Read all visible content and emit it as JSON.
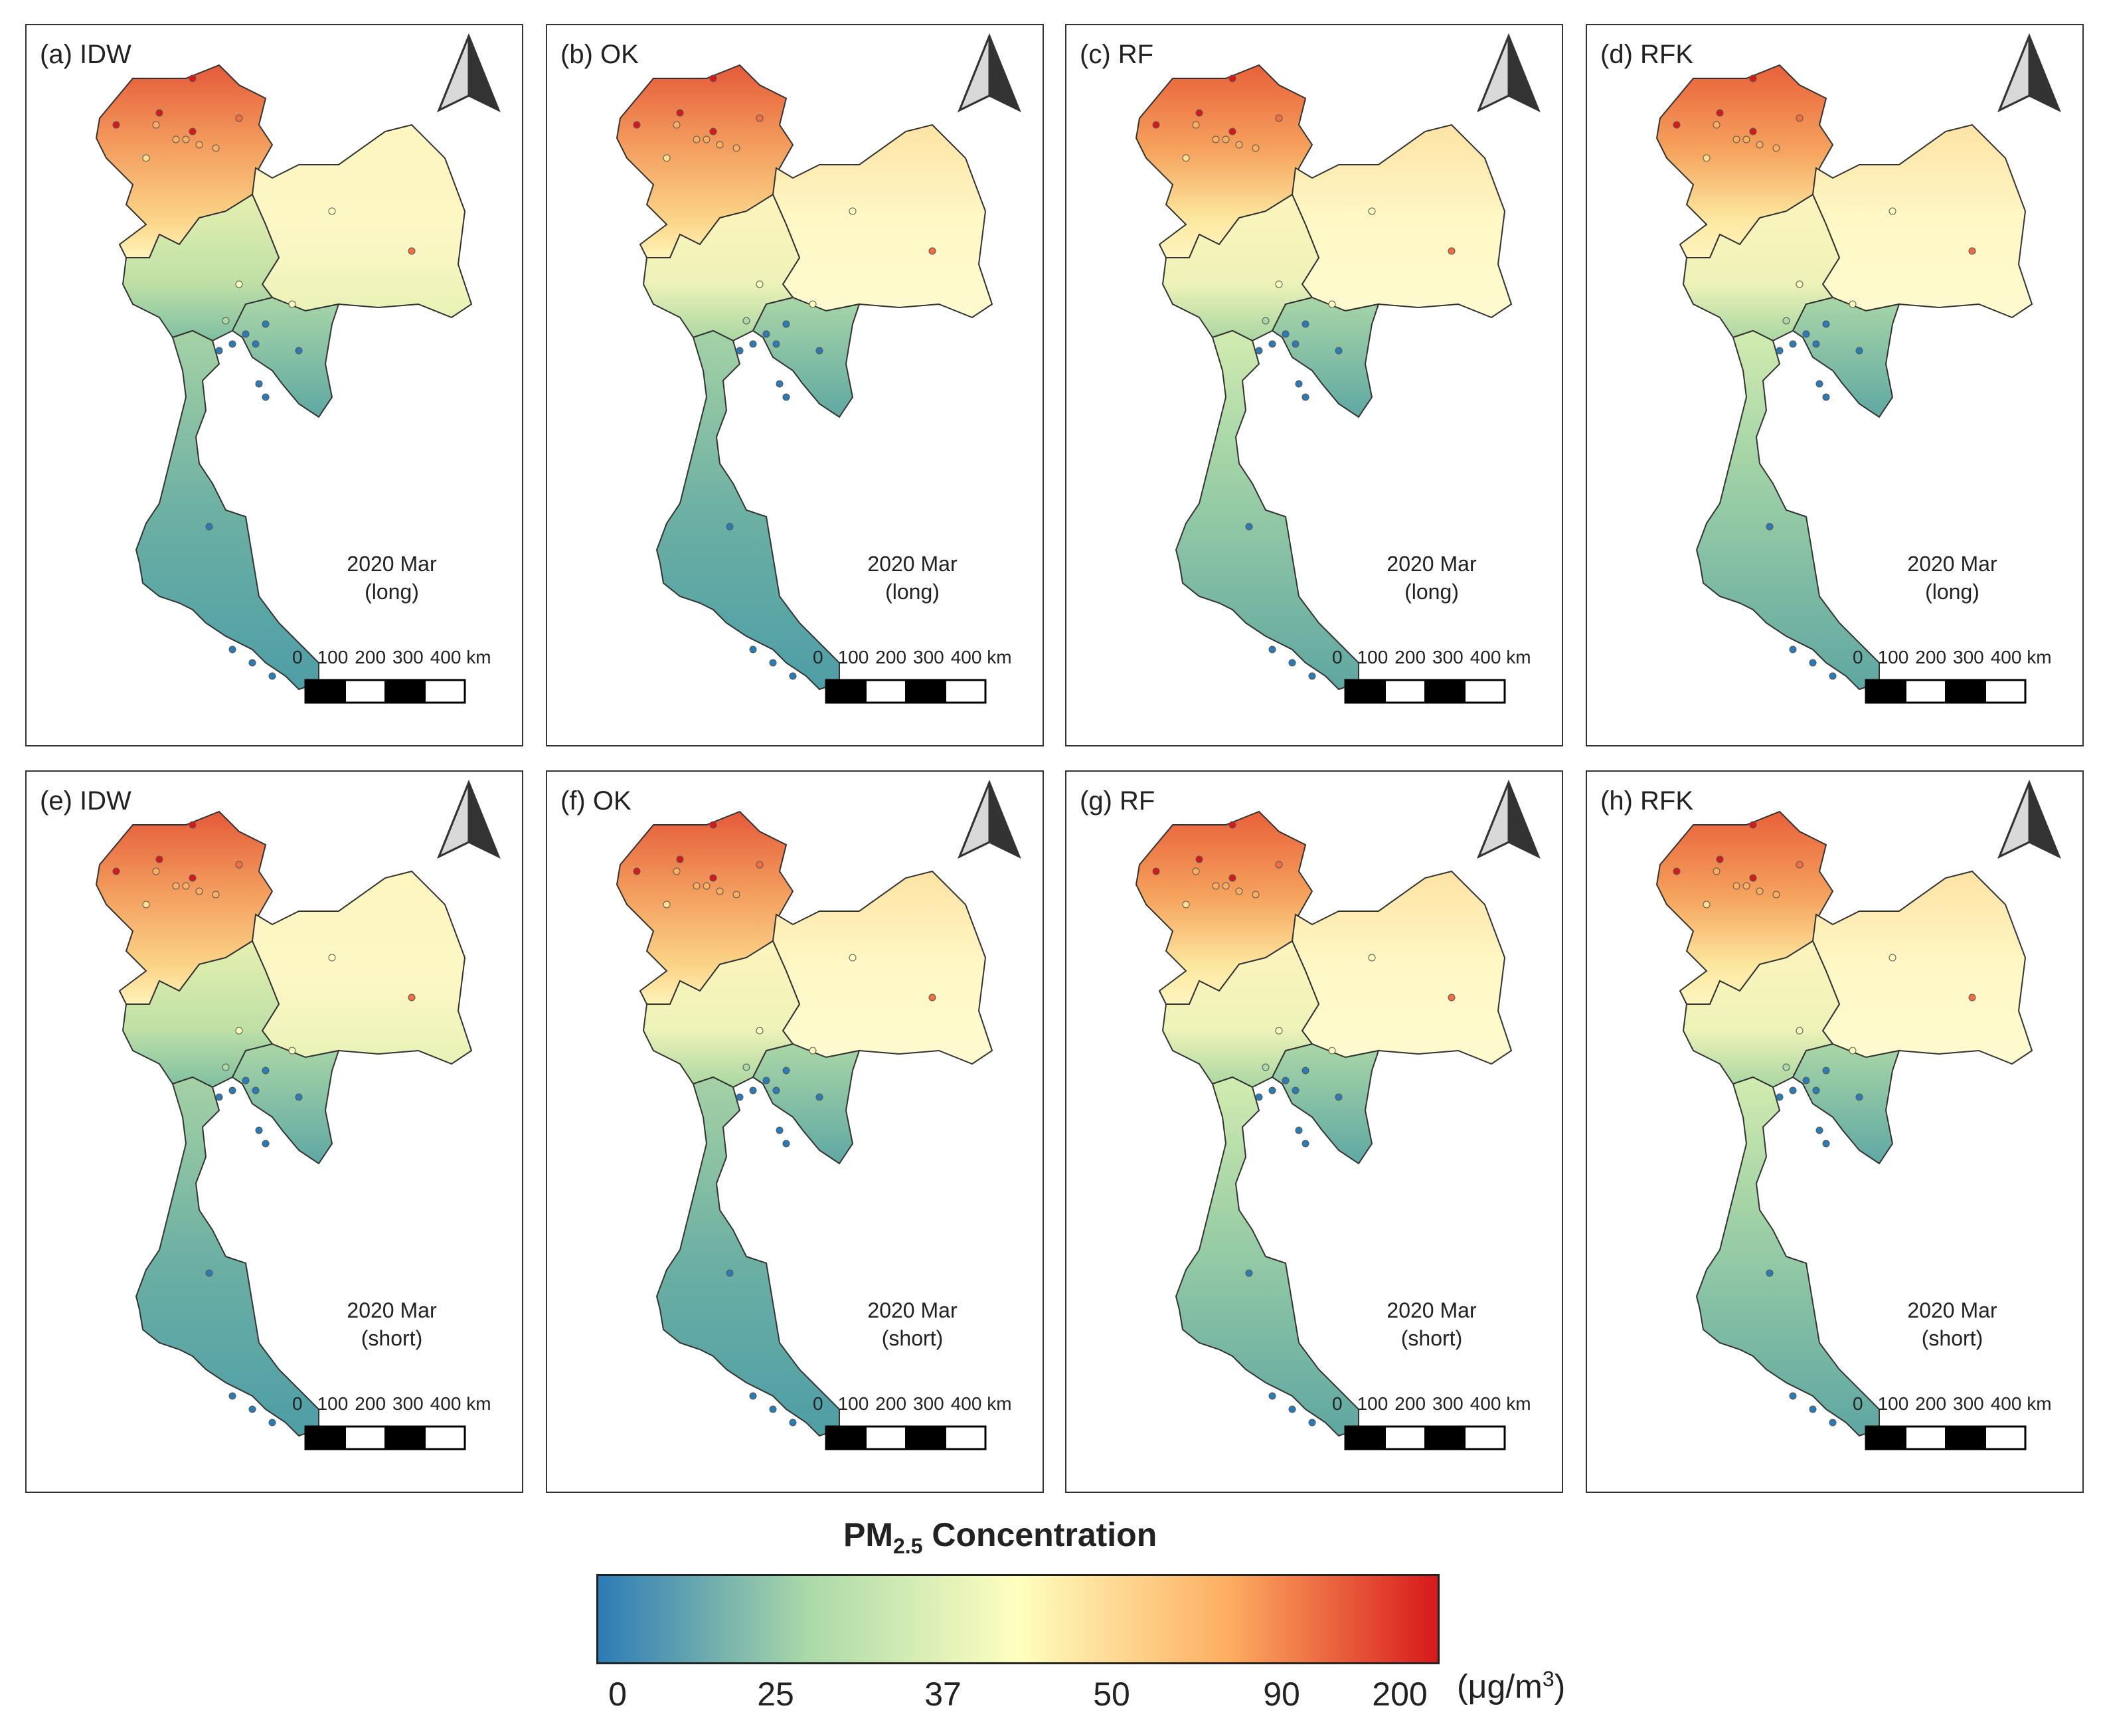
{
  "figure": {
    "panels": [
      {
        "label": "(a) IDW",
        "method": "IDW",
        "date": "2020 Mar",
        "mode": "(long)"
      },
      {
        "label": "(b) OK",
        "method": "OK",
        "date": "2020 Mar",
        "mode": "(long)"
      },
      {
        "label": "(c) RF",
        "method": "RF",
        "date": "2020 Mar",
        "mode": "(long)"
      },
      {
        "label": "(d) RFK",
        "method": "RFK",
        "date": "2020 Mar",
        "mode": "(long)"
      },
      {
        "label": "(e) IDW",
        "method": "IDW",
        "date": "2020 Mar",
        "mode": "(short)"
      },
      {
        "label": "(f) OK",
        "method": "OK",
        "date": "2020 Mar",
        "mode": "(short)"
      },
      {
        "label": "(g) RF",
        "method": "RF",
        "date": "2020 Mar",
        "mode": "(short)"
      },
      {
        "label": "(h) RFK",
        "method": "RFK",
        "date": "2020 Mar",
        "mode": "(short)"
      }
    ],
    "scale_bar": {
      "labels": [
        "0",
        "100",
        "200",
        "300",
        "400 km"
      ]
    },
    "legend": {
      "title_main": "PM",
      "title_sub": "2.5",
      "title_rest": " Concentration",
      "ticks": [
        "0",
        "25",
        "37",
        "50",
        "90",
        "200"
      ],
      "unit_main": "(μg/m",
      "unit_sup": "3",
      "unit_end": ")",
      "colors": [
        "#2c7bb6",
        "#abd9a9",
        "#ffffbf",
        "#fdae61",
        "#d7191c"
      ]
    }
  }
}
